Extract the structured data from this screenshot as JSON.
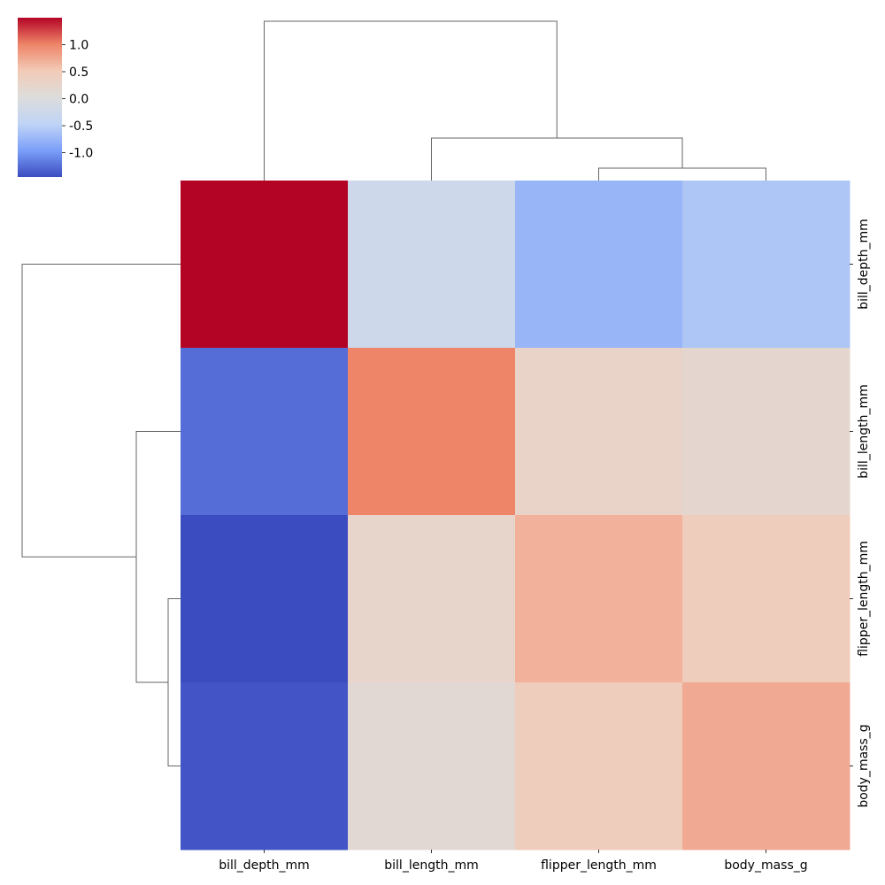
{
  "chart_data": {
    "type": "heatmap",
    "rows": [
      "bill_depth_mm",
      "bill_length_mm",
      "flipper_length_mm",
      "body_mass_g"
    ],
    "columns": [
      "bill_depth_mm",
      "bill_length_mm",
      "flipper_length_mm",
      "body_mass_g"
    ],
    "values": [
      [
        1.5,
        -0.25,
        -0.75,
        -0.6
      ],
      [
        -1.25,
        1.0,
        0.3,
        0.2
      ],
      [
        -1.45,
        0.25,
        0.7,
        0.45
      ],
      [
        -1.4,
        0.15,
        0.45,
        0.75
      ]
    ],
    "colorbar": {
      "ticks": [
        1.0,
        0.5,
        0.0,
        -0.5,
        -1.0
      ],
      "tick_labels": [
        "1.0",
        "0.5",
        "0.0",
        "-0.5",
        "-1.0"
      ],
      "range": [
        -1.45,
        1.5
      ],
      "colormap": "coolwarm"
    },
    "dendrogram": {
      "column_order": [
        "bill_depth_mm",
        "bill_length_mm",
        "flipper_length_mm",
        "body_mass_g"
      ],
      "row_order": [
        "bill_depth_mm",
        "bill_length_mm",
        "flipper_length_mm",
        "body_mass_g"
      ],
      "merges": [
        [
          "flipper_length_mm",
          "body_mass_g"
        ],
        [
          "bill_length_mm",
          "flipper_length_mm + body_mass_g"
        ],
        [
          "bill_depth_mm",
          "bill_length_mm + flipper_length_mm + body_mass_g"
        ]
      ]
    }
  },
  "colors": {
    "link_color": "#666666",
    "coolwarm_stops": [
      "#3b4cc0",
      "#7b9ff9",
      "#c0d4f5",
      "#dddcdc",
      "#f2cbb7",
      "#ee8468",
      "#b40426"
    ]
  }
}
